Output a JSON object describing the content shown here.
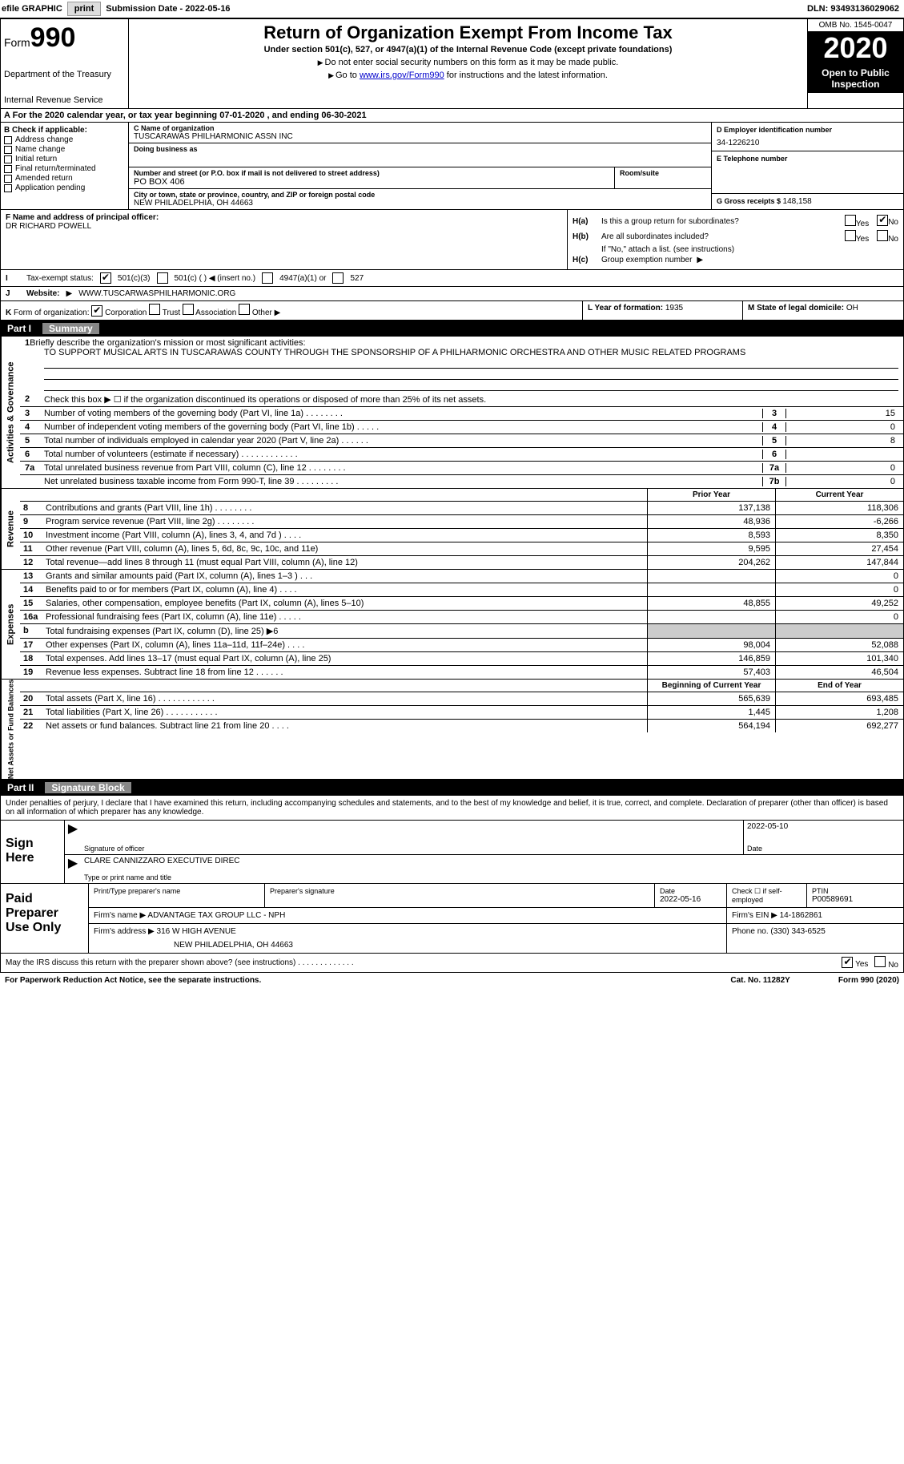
{
  "header": {
    "efile_label": "efile GRAPHIC",
    "print_btn": "print",
    "sub_date_label": "Submission Date - ",
    "sub_date": "2022-05-16",
    "dln_label": "DLN: ",
    "dln": "93493136029062"
  },
  "form_header": {
    "form_word": "Form",
    "form_num": "990",
    "dept1": "Department of the Treasury",
    "dept2": "Internal Revenue Service",
    "title": "Return of Organization Exempt From Income Tax",
    "subtitle": "Under section 501(c), 527, or 4947(a)(1) of the Internal Revenue Code (except private foundations)",
    "instr1": "Do not enter social security numbers on this form as it may be made public.",
    "instr2_pre": "Go to ",
    "instr2_link": "www.irs.gov/Form990",
    "instr2_post": " for instructions and the latest information.",
    "omb": "OMB No. 1545-0047",
    "year": "2020",
    "inspect": "Open to Public Inspection"
  },
  "period": {
    "text_pre": "For the 2020 calendar year, or tax year beginning ",
    "begin": "07-01-2020",
    "text_mid": " , and ending ",
    "end": "06-30-2021"
  },
  "boxB": {
    "header": "B Check if applicable:",
    "items": [
      "Address change",
      "Name change",
      "Initial return",
      "Final return/terminated",
      "Amended return",
      "Application pending"
    ]
  },
  "boxC": {
    "name_label": "C Name of organization",
    "name": "TUSCARAWAS PHILHARMONIC ASSN INC",
    "dba_label": "Doing business as",
    "addr_label": "Number and street (or P.O. box if mail is not delivered to street address)",
    "room_label": "Room/suite",
    "addr": "PO BOX 406",
    "city_label": "City or town, state or province, country, and ZIP or foreign postal code",
    "city": "NEW PHILADELPHIA, OH  44663"
  },
  "boxD": {
    "ein_label": "D Employer identification number",
    "ein": "34-1226210",
    "phone_label": "E Telephone number",
    "gross_label": "G Gross receipts $ ",
    "gross": "148,158"
  },
  "boxF": {
    "label": "F  Name and address of principal officer:",
    "name": "DR RICHARD POWELL"
  },
  "boxH": {
    "ha_label": "H(a)",
    "ha_text": "Is this a group return for subordinates?",
    "hb_label": "H(b)",
    "hb_text": "Are all subordinates included?",
    "hb_note": "If \"No,\" attach a list. (see instructions)",
    "hc_label": "H(c)",
    "hc_text": "Group exemption number",
    "yes": "Yes",
    "no": "No"
  },
  "rowI": {
    "label": "I",
    "text": "Tax-exempt status:",
    "opts": [
      "501(c)(3)",
      "501(c) (   ) ◀ (insert no.)",
      "4947(a)(1) or",
      "527"
    ]
  },
  "rowJ": {
    "label": "J",
    "text": "Website:",
    "url": "WWW.TUSCARWASPHILHARMONIC.ORG"
  },
  "rowK": {
    "label": "K",
    "text": "Form of organization:",
    "opts": [
      "Corporation",
      "Trust",
      "Association",
      "Other"
    ]
  },
  "rowL": {
    "label": "L Year of formation: ",
    "val": "1935"
  },
  "rowM": {
    "label": "M State of legal domicile: ",
    "val": "OH"
  },
  "part1": {
    "label": "Part I",
    "title": "Summary"
  },
  "gov": {
    "tab": "Activities & Governance",
    "l1_num": "1",
    "l1_text": "Briefly describe the organization's mission or most significant activities:",
    "l1_val": "TO SUPPORT MUSICAL ARTS IN TUSCARAWAS COUNTY THROUGH THE SPONSORSHIP OF A PHILHARMONIC ORCHESTRA AND OTHER MUSIC RELATED PROGRAMS",
    "l2_num": "2",
    "l2_text": "Check this box ▶ ☐  if the organization discontinued its operations or disposed of more than 25% of its net assets.",
    "rows": [
      {
        "n": "3",
        "t": "Number of voting members of the governing body (Part VI, line 1a)   .    .    .    .    .    .    .    .",
        "b": "3",
        "v": "15"
      },
      {
        "n": "4",
        "t": "Number of independent voting members of the governing body (Part VI, line 1b)   .    .    .    .    .",
        "b": "4",
        "v": "0"
      },
      {
        "n": "5",
        "t": "Total number of individuals employed in calendar year 2020 (Part V, line 2a)   .    .    .    .    .    .",
        "b": "5",
        "v": "8"
      },
      {
        "n": "6",
        "t": "Total number of volunteers (estimate if necessary)   .    .    .    .    .    .    .    .    .    .    .    .",
        "b": "6",
        "v": ""
      },
      {
        "n": "7a",
        "t": "Total unrelated business revenue from Part VIII, column (C), line 12   .    .    .    .    .    .    .    .",
        "b": "7a",
        "v": "0"
      },
      {
        "n": "",
        "t": "Net unrelated business taxable income from Form 990-T, line 39   .    .    .    .    .    .    .    .    .",
        "b": "7b",
        "v": "0"
      }
    ]
  },
  "rev": {
    "tab": "Revenue",
    "hdr_prior": "Prior Year",
    "hdr_curr": "Current Year",
    "rows": [
      {
        "n": "8",
        "t": "Contributions and grants (Part VIII, line 1h)   .    .    .    .    .    .    .    .",
        "p": "137,138",
        "c": "118,306"
      },
      {
        "n": "9",
        "t": "Program service revenue (Part VIII, line 2g)   .    .    .    .    .    .    .    .",
        "p": "48,936",
        "c": "-6,266"
      },
      {
        "n": "10",
        "t": "Investment income (Part VIII, column (A), lines 3, 4, and 7d )   .    .    .    .",
        "p": "8,593",
        "c": "8,350"
      },
      {
        "n": "11",
        "t": "Other revenue (Part VIII, column (A), lines 5, 6d, 8c, 9c, 10c, and 11e)",
        "p": "9,595",
        "c": "27,454"
      },
      {
        "n": "12",
        "t": "Total revenue—add lines 8 through 11 (must equal Part VIII, column (A), line 12)",
        "p": "204,262",
        "c": "147,844"
      }
    ]
  },
  "exp": {
    "tab": "Expenses",
    "rows": [
      {
        "n": "13",
        "t": "Grants and similar amounts paid (Part IX, column (A), lines 1–3 )   .    .    .",
        "p": "",
        "c": "0"
      },
      {
        "n": "14",
        "t": "Benefits paid to or for members (Part IX, column (A), line 4)   .    .    .    .",
        "p": "",
        "c": "0"
      },
      {
        "n": "15",
        "t": "Salaries, other compensation, employee benefits (Part IX, column (A), lines 5–10)",
        "p": "48,855",
        "c": "49,252"
      },
      {
        "n": "16a",
        "t": "Professional fundraising fees (Part IX, column (A), line 11e)   .    .    .    .    .",
        "p": "",
        "c": "0"
      },
      {
        "n": "b",
        "t": "Total fundraising expenses (Part IX, column (D), line 25) ▶6",
        "p": "SHADE",
        "c": "SHADE"
      },
      {
        "n": "17",
        "t": "Other expenses (Part IX, column (A), lines 11a–11d, 11f–24e)   .    .    .    .",
        "p": "98,004",
        "c": "52,088"
      },
      {
        "n": "18",
        "t": "Total expenses. Add lines 13–17 (must equal Part IX, column (A), line 25)",
        "p": "146,859",
        "c": "101,340"
      },
      {
        "n": "19",
        "t": "Revenue less expenses. Subtract line 18 from line 12   .    .    .    .    .    .",
        "p": "57,403",
        "c": "46,504"
      }
    ]
  },
  "net": {
    "tab": "Net Assets or Fund Balances",
    "hdr_begin": "Beginning of Current Year",
    "hdr_end": "End of Year",
    "rows": [
      {
        "n": "20",
        "t": "Total assets (Part X, line 16)  .    .    .    .    .    .    .    .    .    .    .    .",
        "p": "565,639",
        "c": "693,485"
      },
      {
        "n": "21",
        "t": "Total liabilities (Part X, line 26)  .    .    .    .    .    .    .    .    .    .    .",
        "p": "1,445",
        "c": "1,208"
      },
      {
        "n": "22",
        "t": "Net assets or fund balances. Subtract line 21 from line 20   .    .    .    .",
        "p": "564,194",
        "c": "692,277"
      }
    ]
  },
  "part2": {
    "label": "Part II",
    "title": "Signature Block"
  },
  "sig": {
    "decl": "Under penalties of perjury, I declare that I have examined this return, including accompanying schedules and statements, and to the best of my knowledge and belief, it is true, correct, and complete. Declaration of preparer (other than officer) is based on all information of which preparer has any knowledge.",
    "sign_here": "Sign Here",
    "sig_officer": "Signature of officer",
    "date_label": "Date",
    "date": "2022-05-10",
    "name": "CLARE CANNIZZARO  EXECUTIVE DIREC",
    "name_label": "Type or print name and title"
  },
  "prep": {
    "left": "Paid Preparer Use Only",
    "r1": {
      "c1_lbl": "Print/Type preparer's name",
      "c2_lbl": "Preparer's signature",
      "c3_lbl": "Date",
      "c3": "2022-05-16",
      "c4_lbl": "Check ☐ if self-employed",
      "c5_lbl": "PTIN",
      "c5": "P00589691"
    },
    "r2": {
      "lbl": "Firm's name    ▶",
      "val": "ADVANTAGE TAX GROUP LLC - NPH",
      "ein_lbl": "Firm's EIN ▶",
      "ein": "14-1862861"
    },
    "r3": {
      "lbl": "Firm's address ▶",
      "val1": "316 W HIGH AVENUE",
      "val2": "NEW PHILADELPHIA, OH  44663",
      "ph_lbl": "Phone no.",
      "ph": "(330) 343-6525"
    }
  },
  "discuss": {
    "text": "May the IRS discuss this return with the preparer shown above? (see instructions)   .    .    .    .    .    .    .    .    .    .    .    .    .",
    "yes": "Yes",
    "no": "No"
  },
  "footer": {
    "left": "For Paperwork Reduction Act Notice, see the separate instructions.",
    "mid": "Cat. No. 11282Y",
    "right": "Form 990 (2020)"
  }
}
